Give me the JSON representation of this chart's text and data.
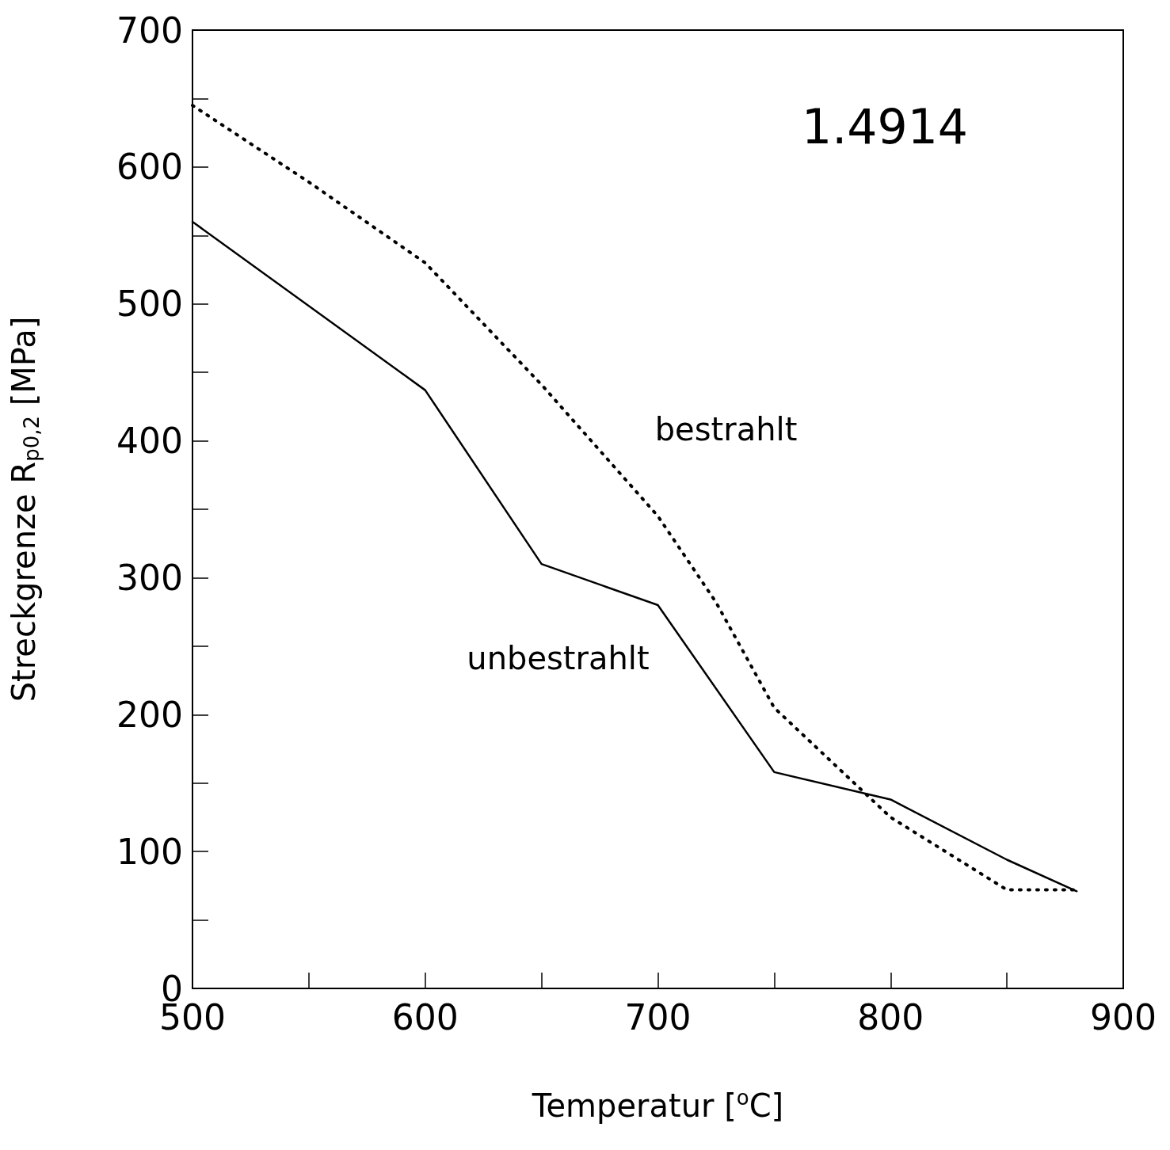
{
  "chart_data": {
    "type": "line",
    "title": "1.4914",
    "xlabel": "Temperatur [$^{o}$C]",
    "ylabel": "Streckgrenze R$_{p0,2}$ [MPa]",
    "xlim": [
      500,
      900
    ],
    "xticks": [
      500,
      600,
      700,
      800,
      900
    ],
    "ylim": [
      0,
      700
    ],
    "yticks": [
      0,
      100,
      200,
      300,
      400,
      500,
      600,
      700
    ],
    "grid": false,
    "marker": "none",
    "series": [
      {
        "name": "unbestrahlt",
        "color": "#000000",
        "line_style": "solid",
        "x": [
          500,
          600,
          650,
          700,
          750,
          800,
          850,
          880
        ],
        "values": [
          560,
          437,
          310,
          280,
          158,
          138,
          94,
          71
        ]
      },
      {
        "name": "bestrahlt",
        "color": "#000000",
        "line_style": "dotted",
        "x": [
          500,
          550,
          600,
          650,
          700,
          725,
          750,
          800,
          850,
          880
        ],
        "values": [
          645,
          589,
          530,
          441,
          345,
          282,
          205,
          125,
          72,
          72
        ]
      }
    ]
  }
}
